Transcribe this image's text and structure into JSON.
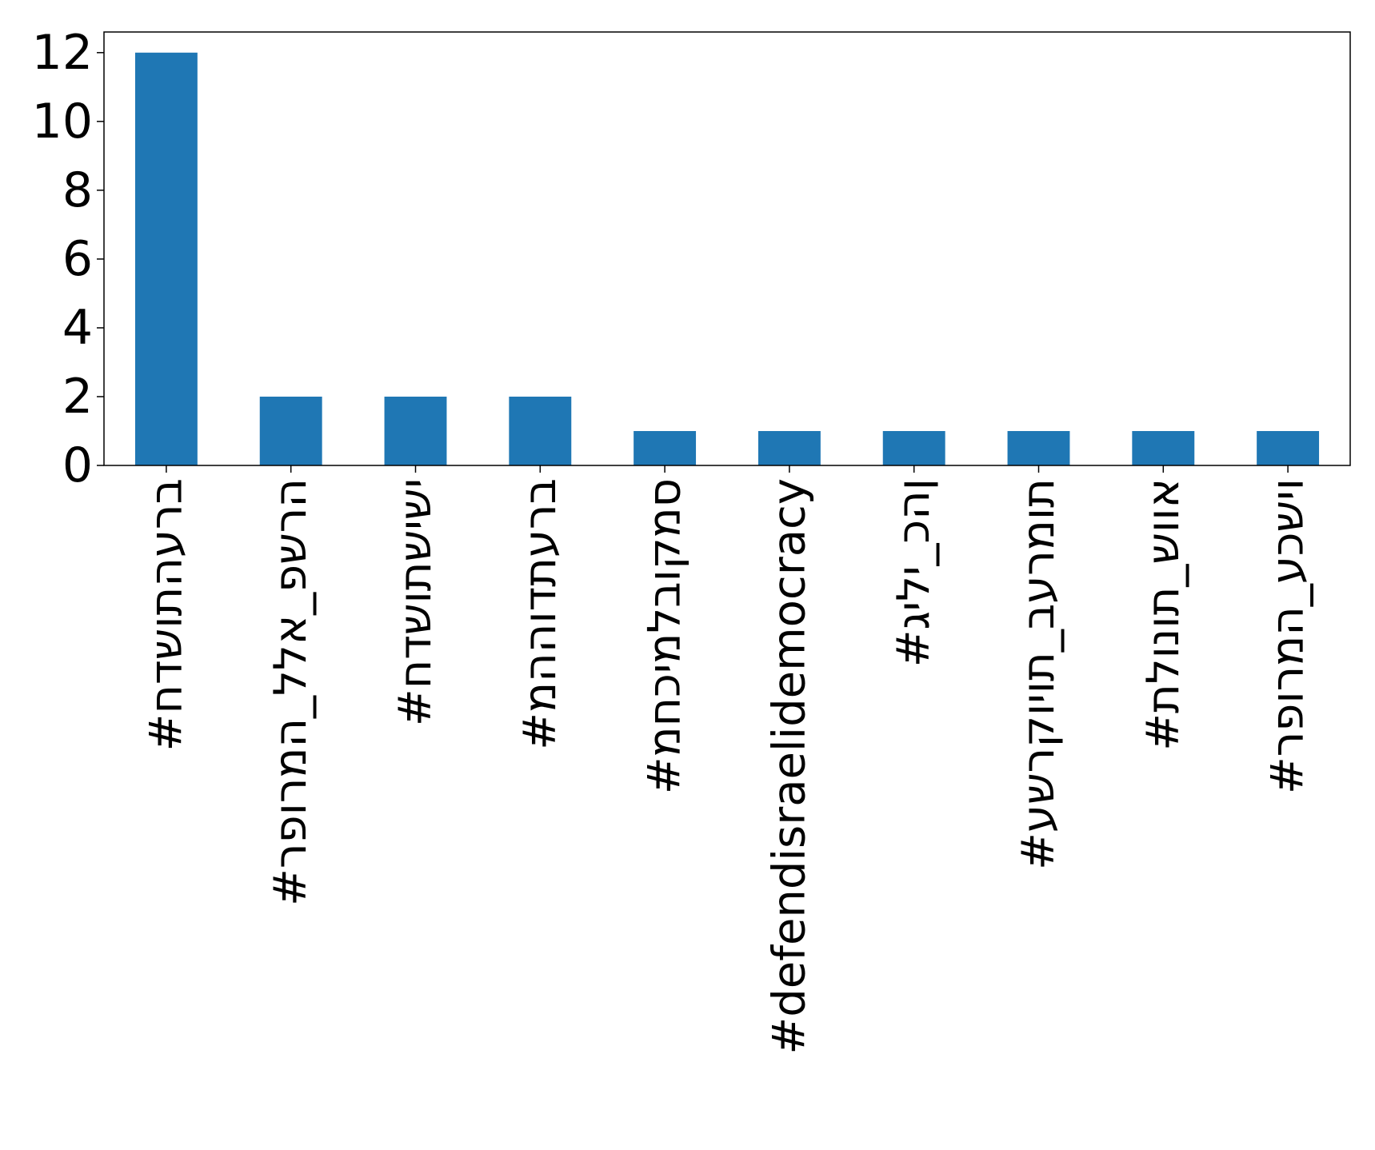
{
  "chart_data": {
    "type": "bar",
    "categories": [
      "#חדשותהערב",
      "#רפורמה_ללא_פשרה",
      "#חדשותשישי",
      "#מההודתערב",
      "#מחכימלבוקמס",
      "#defendisraelidemocracy",
      "#גילי_כהן",
      "#עשרקויות_בערמות",
      "#תלונות_שווא",
      "#רפורמה_עכשיו"
    ],
    "values": [
      12,
      2,
      2,
      2,
      1,
      1,
      1,
      1,
      1,
      1
    ],
    "ylim": [
      0,
      12.6
    ],
    "yticks": [
      "0",
      "2",
      "4",
      "6",
      "8",
      "10",
      "12"
    ],
    "bar_color": "#1f77b4",
    "axis_color": "#000000",
    "grid": false,
    "legend": "none"
  }
}
